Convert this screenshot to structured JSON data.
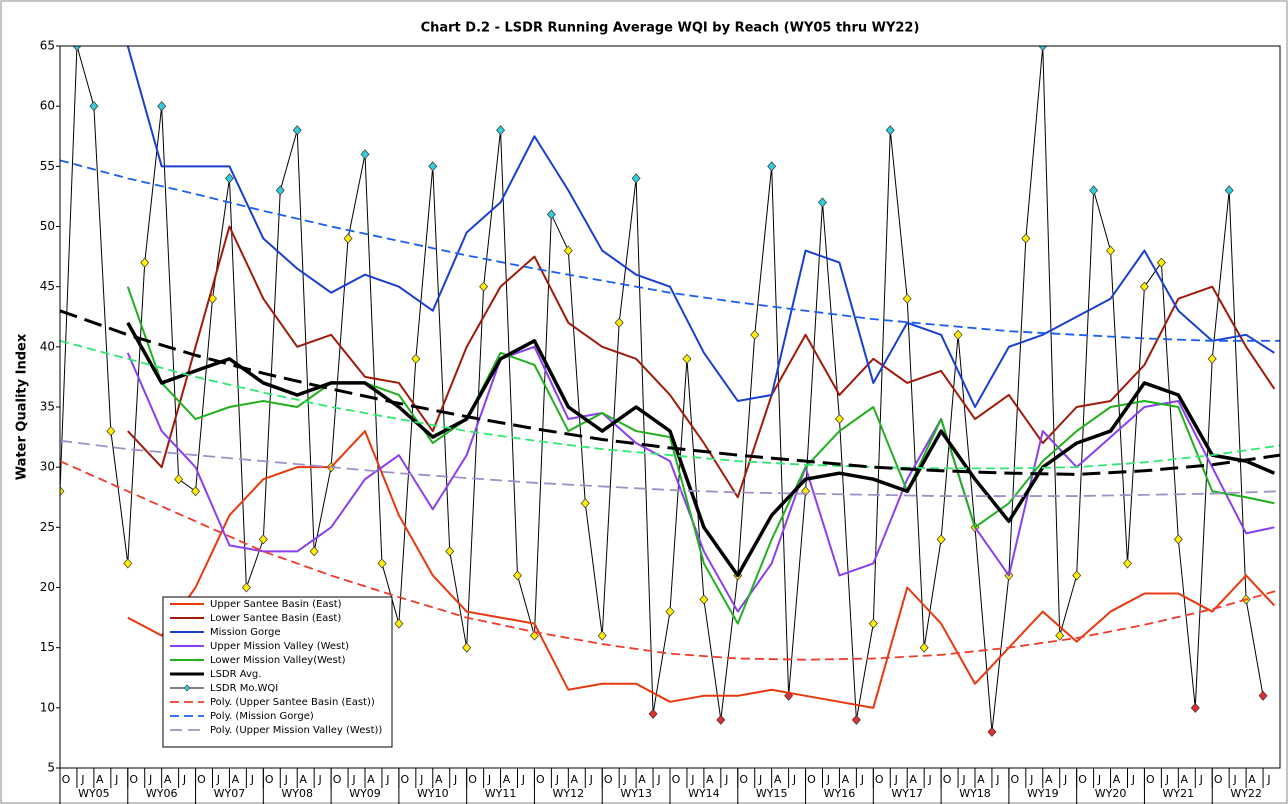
{
  "chart_data": {
    "type": "line",
    "title": "Chart D.2 - LSDR Running Average WQI by Reach (WY05 thru WY22)",
    "y_label": "Water Quality Index",
    "xlim": [
      0,
      216
    ],
    "ylim": [
      5,
      65
    ],
    "yticks": [
      5,
      10,
      15,
      20,
      25,
      30,
      35,
      40,
      45,
      50,
      55,
      60,
      65
    ],
    "xticks": [
      {
        "value": 0,
        "label": "O"
      },
      {
        "value": 3,
        "label": "J"
      },
      {
        "value": 6,
        "label": "A"
      },
      {
        "value": 9,
        "label": "J"
      },
      {
        "value": 12,
        "label": "O"
      },
      {
        "value": 15,
        "label": "J"
      },
      {
        "value": 18,
        "label": "A"
      },
      {
        "value": 21,
        "label": "J"
      },
      {
        "value": 24,
        "label": "O"
      },
      {
        "value": 27,
        "label": "J"
      },
      {
        "value": 30,
        "label": "A"
      },
      {
        "value": 33,
        "label": "J"
      },
      {
        "value": 36,
        "label": "O"
      },
      {
        "value": 39,
        "label": "J"
      },
      {
        "value": 42,
        "label": "A"
      },
      {
        "value": 45,
        "label": "J"
      },
      {
        "value": 48,
        "label": "O"
      },
      {
        "value": 51,
        "label": "J"
      },
      {
        "value": 54,
        "label": "A"
      },
      {
        "value": 57,
        "label": "J"
      },
      {
        "value": 60,
        "label": "O"
      },
      {
        "value": 63,
        "label": "J"
      },
      {
        "value": 66,
        "label": "A"
      },
      {
        "value": 69,
        "label": "J"
      },
      {
        "value": 72,
        "label": "O"
      },
      {
        "value": 75,
        "label": "J"
      },
      {
        "value": 78,
        "label": "A"
      },
      {
        "value": 81,
        "label": "J"
      },
      {
        "value": 84,
        "label": "O"
      },
      {
        "value": 87,
        "label": "J"
      },
      {
        "value": 90,
        "label": "A"
      },
      {
        "value": 93,
        "label": "J"
      },
      {
        "value": 96,
        "label": "O"
      },
      {
        "value": 99,
        "label": "J"
      },
      {
        "value": 102,
        "label": "A"
      },
      {
        "value": 105,
        "label": "J"
      },
      {
        "value": 108,
        "label": "O"
      },
      {
        "value": 111,
        "label": "J"
      },
      {
        "value": 114,
        "label": "A"
      },
      {
        "value": 117,
        "label": "J"
      },
      {
        "value": 120,
        "label": "O"
      },
      {
        "value": 123,
        "label": "J"
      },
      {
        "value": 126,
        "label": "A"
      },
      {
        "value": 129,
        "label": "J"
      },
      {
        "value": 132,
        "label": "O"
      },
      {
        "value": 135,
        "label": "J"
      },
      {
        "value": 138,
        "label": "A"
      },
      {
        "value": 141,
        "label": "J"
      },
      {
        "value": 144,
        "label": "O"
      },
      {
        "value": 147,
        "label": "J"
      },
      {
        "value": 150,
        "label": "A"
      },
      {
        "value": 153,
        "label": "J"
      },
      {
        "value": 156,
        "label": "O"
      },
      {
        "value": 159,
        "label": "J"
      },
      {
        "value": 162,
        "label": "A"
      },
      {
        "value": 165,
        "label": "J"
      },
      {
        "value": 168,
        "label": "O"
      },
      {
        "value": 171,
        "label": "J"
      },
      {
        "value": 174,
        "label": "A"
      },
      {
        "value": 177,
        "label": "J"
      },
      {
        "value": 180,
        "label": "O"
      },
      {
        "value": 183,
        "label": "J"
      },
      {
        "value": 186,
        "label": "A"
      },
      {
        "value": 189,
        "label": "J"
      },
      {
        "value": 192,
        "label": "O"
      },
      {
        "value": 195,
        "label": "J"
      },
      {
        "value": 198,
        "label": "A"
      },
      {
        "value": 201,
        "label": "J"
      },
      {
        "value": 204,
        "label": "O"
      },
      {
        "value": 207,
        "label": "J"
      },
      {
        "value": 210,
        "label": "A"
      },
      {
        "value": 213,
        "label": "J"
      }
    ],
    "year_labels": [
      "WY05",
      "WY06",
      "WY07",
      "WY08",
      "WY09",
      "WY10",
      "WY11",
      "WY12",
      "WY13",
      "WY14",
      "WY15",
      "WY16",
      "WY17",
      "WY18",
      "WY19",
      "WY20",
      "WY21",
      "WY22"
    ],
    "grid": false,
    "series": [
      {
        "name": "Upper Santee Basin (East)",
        "color": "#e8380d",
        "width": 2,
        "x": [
          12,
          18,
          24,
          30,
          36,
          42,
          48,
          54,
          60,
          66,
          72,
          78,
          84,
          90,
          96,
          102,
          108,
          114,
          120,
          126,
          132,
          138,
          144,
          150,
          156,
          162,
          168,
          174,
          180,
          186,
          192,
          198,
          204,
          210,
          215
        ],
        "values": [
          17.5,
          16,
          20,
          26,
          29,
          30,
          30,
          33,
          26,
          21,
          18,
          17.5,
          17,
          11.5,
          12,
          12,
          10.5,
          11,
          11,
          11.5,
          11,
          10.5,
          10,
          20,
          17,
          12,
          15,
          18,
          15.5,
          18,
          19.5,
          19.5,
          18,
          21,
          18.5
        ]
      },
      {
        "name": "Lower Santee Basin (East)",
        "color": "#a01a0a",
        "width": 2,
        "x": [
          12,
          18,
          24,
          30,
          36,
          42,
          48,
          54,
          60,
          66,
          72,
          78,
          84,
          90,
          96,
          102,
          108,
          114,
          120,
          126,
          132,
          138,
          144,
          150,
          156,
          162,
          168,
          174,
          180,
          186,
          192,
          198,
          204,
          210,
          215
        ],
        "values": [
          33,
          30,
          40,
          50,
          44,
          40,
          41,
          37.5,
          37,
          33,
          40,
          45,
          47.5,
          42,
          40,
          39,
          36,
          32,
          27.5,
          36,
          41,
          36,
          39,
          37,
          38,
          34,
          36,
          32,
          35,
          35.5,
          38.5,
          44,
          45,
          40,
          36.5
        ]
      },
      {
        "name": "Mission Gorge",
        "color": "#1a3fd0",
        "width": 2,
        "x": [
          12,
          18,
          24,
          30,
          36,
          42,
          48,
          54,
          60,
          66,
          72,
          78,
          84,
          90,
          96,
          102,
          108,
          114,
          120,
          126,
          132,
          138,
          144,
          150,
          156,
          162,
          168,
          174,
          180,
          186,
          192,
          198,
          204,
          210,
          215
        ],
        "values": [
          65,
          55,
          55,
          55,
          49,
          46.5,
          44.5,
          46,
          45,
          43,
          49.5,
          52,
          57.5,
          53,
          48,
          46,
          45,
          39.5,
          35.5,
          36,
          48,
          47,
          37,
          42,
          41,
          35,
          40,
          41,
          42.5,
          44,
          48,
          43,
          40.5,
          41,
          39.5
        ]
      },
      {
        "name": "Upper Mission Valley (West)",
        "color": "#8a3ff0",
        "width": 2,
        "x": [
          12,
          18,
          24,
          30,
          36,
          42,
          48,
          54,
          60,
          66,
          72,
          78,
          84,
          90,
          96,
          102,
          108,
          114,
          120,
          126,
          132,
          138,
          144,
          150,
          156,
          162,
          168,
          174,
          180,
          186,
          192,
          198,
          204,
          210,
          215
        ],
        "values": [
          39.5,
          33,
          30,
          23.5,
          23,
          23,
          25,
          29,
          31,
          26.5,
          31,
          39,
          40,
          34,
          34.5,
          32,
          30.5,
          23,
          18,
          22,
          30,
          21,
          22,
          29,
          34,
          25,
          21,
          33,
          30,
          32.5,
          35,
          35.5,
          30,
          24.5,
          25
        ]
      },
      {
        "name": "Lower Mission Valley(West)",
        "color": "#20b020",
        "width": 2,
        "x": [
          12,
          18,
          24,
          30,
          36,
          42,
          48,
          54,
          60,
          66,
          72,
          78,
          84,
          90,
          96,
          102,
          108,
          114,
          120,
          126,
          132,
          138,
          144,
          150,
          156,
          162,
          168,
          174,
          180,
          186,
          192,
          198,
          204,
          210,
          215
        ],
        "values": [
          45,
          37,
          34,
          35,
          35.5,
          35,
          37,
          37,
          36,
          32,
          34,
          39.5,
          38.5,
          33,
          34.5,
          33,
          32.5,
          22,
          17,
          24,
          30,
          33,
          35,
          28,
          34,
          25,
          27,
          30.5,
          33,
          35,
          35.5,
          35,
          28,
          27.5,
          27
        ]
      },
      {
        "name": "LSDR Avg.",
        "color": "#000000",
        "width": 3.5,
        "x": [
          12,
          18,
          24,
          30,
          36,
          42,
          48,
          54,
          60,
          66,
          72,
          78,
          84,
          90,
          96,
          102,
          108,
          114,
          120,
          126,
          132,
          138,
          144,
          150,
          156,
          162,
          168,
          174,
          180,
          186,
          192,
          198,
          204,
          210,
          215
        ],
        "values": [
          42,
          37,
          38,
          39,
          37,
          36,
          37,
          37,
          35,
          32.5,
          34,
          39,
          40.5,
          35,
          33,
          35,
          33,
          25,
          21,
          26,
          29,
          29.5,
          29,
          28,
          33,
          29,
          25.5,
          30,
          32,
          33,
          37,
          36,
          31,
          30.5,
          29.5
        ]
      },
      {
        "name": "LSDR Mo.WQI",
        "color": "#000000",
        "width": 1,
        "marker": true,
        "x": [
          0,
          3,
          6,
          9,
          12,
          15,
          18,
          21,
          24,
          27,
          30,
          33,
          36,
          39,
          42,
          45,
          48,
          51,
          54,
          57,
          60,
          63,
          66,
          69,
          72,
          75,
          78,
          81,
          84,
          87,
          90,
          93,
          96,
          99,
          102,
          105,
          108,
          111,
          114,
          117,
          120,
          123,
          126,
          129,
          132,
          135,
          138,
          141,
          144,
          147,
          150,
          153,
          156,
          159,
          162,
          165,
          168,
          171,
          174,
          177,
          180,
          183,
          186,
          189,
          192,
          195,
          198,
          201,
          204,
          207,
          210,
          213
        ],
        "values": [
          28,
          65,
          60,
          33,
          22,
          47,
          60,
          29,
          28,
          44,
          54,
          20,
          24,
          53,
          58,
          23,
          30,
          49,
          56,
          22,
          17,
          39,
          55,
          23,
          15,
          45,
          58,
          21,
          16,
          51,
          48,
          27,
          16,
          42,
          54,
          9.5,
          18,
          39,
          19,
          9,
          21,
          41,
          55,
          11,
          28,
          52,
          34,
          9,
          17,
          58,
          44,
          15,
          24,
          41,
          25,
          8,
          21,
          49,
          65,
          16,
          21,
          53,
          48,
          22,
          45,
          47,
          24,
          10,
          39,
          53,
          19,
          11
        ],
        "marker_colors": [
          "#ffee00",
          "#33ccdd",
          "#33ccdd",
          "#ffee00",
          "#ffee00",
          "#ffee00",
          "#33ccdd",
          "#ffee00",
          "#ffee00",
          "#ffee00",
          "#33ccdd",
          "#ffee00",
          "#ffee00",
          "#33ccdd",
          "#33ccdd",
          "#ffee00",
          "#ffee00",
          "#ffee00",
          "#33ccdd",
          "#ffee00",
          "#ffee00",
          "#ffee00",
          "#33ccdd",
          "#ffee00",
          "#ffee00",
          "#ffee00",
          "#33ccdd",
          "#ffee00",
          "#ffee00",
          "#33ccdd",
          "#ffee00",
          "#ffee00",
          "#ffee00",
          "#ffee00",
          "#33ccdd",
          "#e03030",
          "#ffee00",
          "#ffee00",
          "#ffee00",
          "#e03030",
          "#ffee00",
          "#ffee00",
          "#33ccdd",
          "#e03030",
          "#ffee00",
          "#33ccdd",
          "#ffee00",
          "#e03030",
          "#ffee00",
          "#33ccdd",
          "#ffee00",
          "#ffee00",
          "#ffee00",
          "#ffee00",
          "#ffee00",
          "#e03030",
          "#ffee00",
          "#ffee00",
          "#33ccdd",
          "#ffee00",
          "#ffee00",
          "#33ccdd",
          "#ffee00",
          "#ffee00",
          "#ffee00",
          "#ffee00",
          "#ffee00",
          "#e03030",
          "#ffee00",
          "#33ccdd",
          "#ffee00",
          "#e03030"
        ]
      },
      {
        "name": "Poly. (Upper Santee Basin (East))",
        "color": "#f03a2a",
        "width": 1.8,
        "dash": "9 5",
        "x": [
          0,
          12,
          24,
          36,
          48,
          60,
          72,
          84,
          96,
          108,
          120,
          132,
          144,
          156,
          168,
          180,
          192,
          204,
          216
        ],
        "values": [
          30.5,
          28,
          25.5,
          23,
          21,
          19.2,
          17.5,
          16.3,
          15.3,
          14.5,
          14.1,
          14,
          14.1,
          14.4,
          15,
          15.8,
          16.9,
          18.2,
          19.8
        ]
      },
      {
        "name": "Poly. (Mission Gorge)",
        "color": "#1a5ff0",
        "width": 1.8,
        "dash": "9 5",
        "x": [
          0,
          12,
          24,
          36,
          48,
          60,
          72,
          84,
          96,
          108,
          120,
          132,
          144,
          156,
          168,
          180,
          192,
          204,
          216
        ],
        "values": [
          55.5,
          54,
          52.7,
          51.3,
          50,
          48.8,
          47.6,
          46.5,
          45.5,
          44.5,
          43.7,
          43,
          42.3,
          41.8,
          41.3,
          41,
          40.7,
          40.5,
          40.5
        ]
      },
      {
        "name": "Poly. (Upper Mission Valley (West))",
        "color": "#a090c8",
        "width": 1.8,
        "dash": "12 6",
        "x": [
          0,
          12,
          24,
          36,
          48,
          60,
          72,
          84,
          96,
          108,
          120,
          132,
          144,
          156,
          168,
          180,
          192,
          204,
          216
        ],
        "values": [
          32.2,
          31.5,
          31,
          30.5,
          30,
          29.5,
          29.1,
          28.7,
          28.4,
          28.1,
          27.9,
          27.8,
          27.7,
          27.6,
          27.6,
          27.6,
          27.7,
          27.8,
          28
        ]
      },
      {
        "color": "#30e870",
        "width": 1.8,
        "dash": "9 5",
        "x": [
          0,
          12,
          24,
          36,
          48,
          60,
          72,
          84,
          96,
          108,
          120,
          132,
          144,
          156,
          168,
          180,
          192,
          204,
          216
        ],
        "values": [
          40.5,
          39,
          37.5,
          36.2,
          35,
          34,
          33,
          32.2,
          31.5,
          31,
          30.5,
          30.2,
          30,
          29.9,
          29.9,
          30,
          30.4,
          31,
          31.8
        ]
      },
      {
        "color": "#000000",
        "width": 3,
        "dash": "18 8",
        "x": [
          0,
          12,
          24,
          36,
          48,
          60,
          72,
          84,
          96,
          108,
          120,
          132,
          144,
          156,
          168,
          180,
          192,
          204,
          216
        ],
        "values": [
          43,
          41,
          39.3,
          37.8,
          36.5,
          35.3,
          34.2,
          33.2,
          32.3,
          31.6,
          31,
          30.5,
          30,
          29.7,
          29.5,
          29.4,
          29.7,
          30.2,
          31
        ]
      }
    ]
  }
}
